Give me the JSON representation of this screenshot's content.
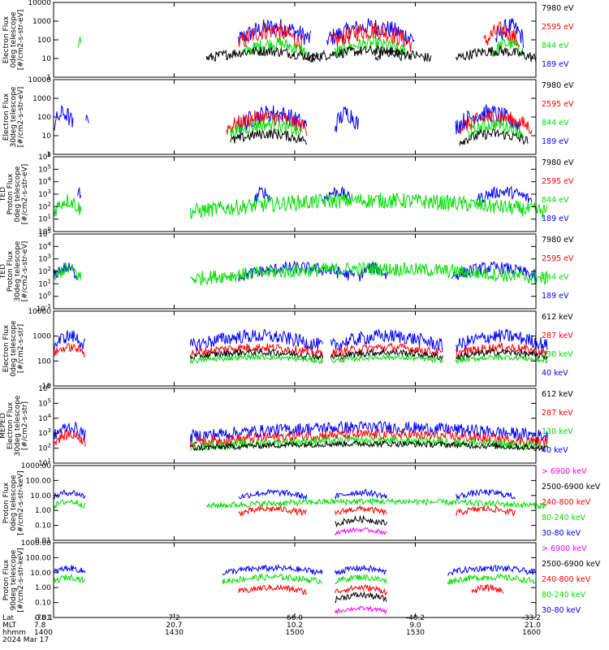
{
  "colors": {
    "blue": "#0000ff",
    "red": "#ff0000",
    "green": "#00dd00",
    "black": "#000000",
    "magenta": "#ff00ff",
    "frame": "#000000"
  },
  "chart_data": [
    {
      "type": "line",
      "ylabel": [
        "Electron Flux",
        "0deg telescope",
        "[#/cm2-s-str-eV]"
      ],
      "ylog": true,
      "ylim": [
        1,
        10000
      ],
      "yticks": [
        "1",
        "10",
        "100",
        "1000",
        "10000"
      ],
      "legend": [
        {
          "label": "7980 eV",
          "color": "black"
        },
        {
          "label": "2595 eV",
          "color": "red"
        },
        {
          "label": "844 eV",
          "color": "green"
        },
        {
          "label": "189 eV",
          "color": "blue"
        }
      ],
      "series": [
        {
          "color": "green",
          "level": 1.5,
          "spread": 0.4,
          "segments": [
            [
              1406,
              1407
            ]
          ]
        },
        {
          "color": "blue",
          "level": 2.0,
          "spread": 0.7,
          "segments": [
            [
              1446,
              1464
            ],
            [
              1508,
              1530
            ],
            [
              1550,
              1557
            ]
          ]
        },
        {
          "color": "red",
          "level": 1.8,
          "spread": 0.7,
          "segments": [
            [
              1446,
              1462
            ],
            [
              1509,
              1529
            ],
            [
              1547,
              1556
            ]
          ]
        },
        {
          "color": "green",
          "level": 1.3,
          "spread": 0.5,
          "segments": [
            [
              1447,
              1463
            ],
            [
              1510,
              1528
            ],
            [
              1549,
              1557
            ]
          ]
        },
        {
          "color": "black",
          "level": 1.0,
          "spread": 0.4,
          "segments": [
            [
              1438,
              1466
            ],
            [
              1480,
              1487
            ],
            [
              1503,
              1534
            ],
            [
              1540,
              1560
            ]
          ]
        }
      ]
    },
    {
      "type": "line",
      "ylabel": [
        "Electron Flux",
        "30deg telescope",
        "[#/cm2-s-str-eV]"
      ],
      "ylog": true,
      "ylim": [
        1,
        10000
      ],
      "yticks": [
        "1",
        "10",
        "100",
        "1000",
        "10000"
      ],
      "legend": [
        {
          "label": "7980 eV",
          "color": "black"
        },
        {
          "label": "2595 eV",
          "color": "red"
        },
        {
          "label": "844 eV",
          "color": "green"
        },
        {
          "label": "189 eV",
          "color": "blue"
        }
      ],
      "series": [
        {
          "color": "blue",
          "level": 1.5,
          "spread": 0.7,
          "segments": [
            [
              1400,
              1405
            ],
            [
              1408,
              1409
            ],
            [
              1446,
              1463
            ],
            [
              1510,
              1516
            ],
            [
              1540,
              1556
            ]
          ]
        },
        {
          "color": "red",
          "level": 1.4,
          "spread": 0.6,
          "segments": [
            [
              1443,
              1463
            ],
            [
              1541,
              1559
            ]
          ]
        },
        {
          "color": "green",
          "level": 1.1,
          "spread": 0.5,
          "segments": [
            [
              1444,
              1462
            ],
            [
              1543,
              1557
            ]
          ]
        },
        {
          "color": "black",
          "level": 0.7,
          "spread": 0.4,
          "segments": [
            [
              1444,
              1463
            ],
            [
              1541,
              1558
            ]
          ]
        }
      ]
    },
    {
      "type": "line",
      "ylabel": [
        "TED",
        "Proton Flux",
        "0deg telescope",
        "[#/cm2-s-str-eV]"
      ],
      "ylog": true,
      "ylim": [
        1,
        1000000
      ],
      "yticks": [
        "10^0",
        "10^1",
        "10^2",
        "10^3",
        "10^4",
        "10^5",
        "10^6"
      ],
      "legend": [
        {
          "label": "7980 eV",
          "color": "black"
        },
        {
          "label": "2595 eV",
          "color": "red"
        },
        {
          "label": "844 eV",
          "color": "green"
        },
        {
          "label": "189 eV",
          "color": "blue"
        }
      ],
      "series": [
        {
          "color": "blue",
          "level": 2.5,
          "spread": 0.7,
          "segments": [
            [
              1406,
              1407
            ],
            [
              1450,
              1454
            ],
            [
              1507,
              1514
            ],
            [
              1545,
              1559
            ]
          ]
        },
        {
          "color": "green",
          "level": 1.6,
          "spread": 0.9,
          "segments": [
            [
              1400,
              1407
            ],
            [
              1434,
              1563
            ]
          ]
        }
      ]
    },
    {
      "type": "line",
      "ylabel": [
        "TED",
        "Proton Flux",
        "30deg telescope",
        "[#/cm2-s-str-eV]"
      ],
      "ylog": true,
      "ylim": [
        0.1,
        100000
      ],
      "yticks": [
        "10^-1",
        "10^0",
        "10^1",
        "10^2",
        "10^3",
        "10^4",
        "10^5"
      ],
      "legend": [
        {
          "label": "7980 eV",
          "color": "black"
        },
        {
          "label": "2595 eV",
          "color": "red"
        },
        {
          "label": "844 eV",
          "color": "green"
        },
        {
          "label": "189 eV",
          "color": "blue"
        }
      ],
      "series": [
        {
          "color": "blue",
          "level": 1.6,
          "spread": 0.7,
          "segments": [
            [
              1400,
              1406
            ],
            [
              1446,
              1475
            ],
            [
              1516,
              1523
            ],
            [
              1539,
              1560
            ]
          ]
        },
        {
          "color": "green",
          "level": 1.4,
          "spread": 0.8,
          "segments": [
            [
              1400,
              1407
            ],
            [
              1434,
              1563
            ]
          ]
        }
      ]
    },
    {
      "type": "line",
      "ylabel": [
        "Electron Flux",
        "0deg telescope",
        "[#/cm2-s-str]"
      ],
      "ylog": true,
      "ylim": [
        10,
        10000
      ],
      "yticks": [
        "10",
        "100",
        "1000",
        "10000"
      ],
      "legend": [
        {
          "label": "612 keV",
          "color": "black"
        },
        {
          "label": "287 keV",
          "color": "red"
        },
        {
          "label": "130 keV",
          "color": "green"
        },
        {
          "label": "40 keV",
          "color": "blue"
        }
      ],
      "series": [
        {
          "color": "blue",
          "level": 2.6,
          "spread": 0.4,
          "segments": [
            [
              1400,
              1408
            ],
            [
              1434,
              1467
            ],
            [
              1509,
              1537
            ],
            [
              1540,
              1563
            ]
          ]
        },
        {
          "color": "red",
          "level": 2.3,
          "spread": 0.25,
          "segments": [
            [
              1400,
              1408
            ],
            [
              1434,
              1467
            ],
            [
              1509,
              1537
            ],
            [
              1540,
              1563
            ]
          ]
        },
        {
          "color": "black",
          "level": 2.15,
          "spread": 0.2,
          "segments": [
            [
              1434,
              1467
            ],
            [
              1509,
              1537
            ],
            [
              1540,
              1563
            ]
          ]
        },
        {
          "color": "green",
          "level": 2.0,
          "spread": 0.15,
          "segments": [
            [
              1434,
              1467
            ],
            [
              1509,
              1537
            ],
            [
              1540,
              1563
            ]
          ]
        }
      ]
    },
    {
      "type": "line",
      "ylabel": [
        "MEPED",
        "Electron Flux",
        "30deg telescope",
        "[#/cm2-s-str]"
      ],
      "ylog": true,
      "ylim": [
        10,
        1000000
      ],
      "yticks": [
        "10^1",
        "10^2",
        "10^3",
        "10^4",
        "10^5",
        "10^6"
      ],
      "legend": [
        {
          "label": "612 keV",
          "color": "black"
        },
        {
          "label": "287 keV",
          "color": "red"
        },
        {
          "label": "130 keV",
          "color": "green"
        },
        {
          "label": "40 keV",
          "color": "blue"
        }
      ],
      "series": [
        {
          "color": "blue",
          "level": 2.8,
          "spread": 0.6,
          "segments": [
            [
              1400,
              1408
            ],
            [
              1434,
              1563
            ]
          ]
        },
        {
          "color": "red",
          "level": 2.4,
          "spread": 0.5,
          "segments": [
            [
              1400,
              1408
            ],
            [
              1434,
              1563
            ]
          ]
        },
        {
          "color": "green",
          "level": 2.1,
          "spread": 0.4,
          "segments": [
            [
              1434,
              1563
            ]
          ]
        },
        {
          "color": "black",
          "level": 2.0,
          "spread": 0.3,
          "segments": [
            [
              1434,
              1563
            ]
          ]
        }
      ]
    },
    {
      "type": "line",
      "ylabel": [
        "Proton Flux",
        "0deg telescope",
        "[#/cm2-s-str-keV]"
      ],
      "ylog": true,
      "ylim": [
        0.01,
        1000
      ],
      "yticks": [
        "0.01",
        "0.10",
        "1.00",
        "10.00",
        "100.00",
        "1000.00"
      ],
      "legend": [
        {
          "label": "> 6900 keV",
          "color": "magenta"
        },
        {
          "label": "2500-6900 keV",
          "color": "black"
        },
        {
          "label": "240-800 keV",
          "color": "red"
        },
        {
          "label": "80-240 keV",
          "color": "green"
        },
        {
          "label": "30-80 keV",
          "color": "blue"
        }
      ],
      "series": [
        {
          "color": "blue",
          "level": 0.9,
          "spread": 0.3,
          "segments": [
            [
              1400,
              1408
            ],
            [
              1446,
              1463
            ],
            [
              1510,
              1523
            ],
            [
              1540,
              1555
            ]
          ]
        },
        {
          "color": "green",
          "level": 0.3,
          "spread": 0.3,
          "segments": [
            [
              1400,
              1408
            ],
            [
              1438,
              1563
            ]
          ]
        },
        {
          "color": "red",
          "level": -0.2,
          "spread": 0.3,
          "segments": [
            [
              1446,
              1463
            ],
            [
              1510,
              1523
            ],
            [
              1540,
              1555
            ]
          ]
        },
        {
          "color": "black",
          "level": -0.9,
          "spread": 0.3,
          "segments": [
            [
              1510,
              1523
            ]
          ]
        },
        {
          "color": "magenta",
          "level": -1.5,
          "spread": 0.2,
          "segments": [
            [
              1510,
              1523
            ]
          ]
        }
      ]
    },
    {
      "type": "line",
      "ylabel": [
        "Proton Flux",
        "90deg telescope",
        "[#/cm2-s-str-keV]"
      ],
      "ylog": true,
      "ylim": [
        0.01,
        1000
      ],
      "yticks": [
        "0.01",
        "0.10",
        "1.00",
        "10.00",
        "100.00",
        "1000.00"
      ],
      "legend": [
        {
          "label": "> 6900 keV",
          "color": "magenta"
        },
        {
          "label": "2500-6900 keV",
          "color": "black"
        },
        {
          "label": "240-800 keV",
          "color": "red"
        },
        {
          "label": "80-240 keV",
          "color": "green"
        },
        {
          "label": "30-80 keV",
          "color": "blue"
        }
      ],
      "series": [
        {
          "color": "blue",
          "level": 1.0,
          "spread": 0.3,
          "segments": [
            [
              1400,
              1408
            ],
            [
              1442,
              1467
            ],
            [
              1510,
              1523
            ],
            [
              1538,
              1560
            ]
          ]
        },
        {
          "color": "green",
          "level": 0.4,
          "spread": 0.3,
          "segments": [
            [
              1400,
              1408
            ],
            [
              1442,
              1467
            ],
            [
              1510,
              1523
            ],
            [
              1538,
              1560
            ]
          ]
        },
        {
          "color": "red",
          "level": -0.3,
          "spread": 0.3,
          "segments": [
            [
              1446,
              1463
            ],
            [
              1510,
              1523
            ],
            [
              1544,
              1552
            ]
          ]
        },
        {
          "color": "black",
          "level": -0.8,
          "spread": 0.3,
          "segments": [
            [
              1510,
              1523
            ]
          ]
        },
        {
          "color": "magenta",
          "level": -1.6,
          "spread": 0.2,
          "segments": [
            [
              1510,
              1523
            ]
          ]
        }
      ]
    }
  ],
  "x_axis": {
    "range": [
      1400,
      1600
    ],
    "row_labels": [
      "Lat",
      "MLT",
      "hhmm",
      "2024 Mar 17"
    ],
    "ticks": [
      {
        "hhmm": "1400",
        "lat": "-78.1",
        "mlt": "7.8"
      },
      {
        "hhmm": "1430",
        "lat": "7.2",
        "mlt": "20.7"
      },
      {
        "hhmm": "1500",
        "lat": "66.0",
        "mlt": "10.2"
      },
      {
        "hhmm": "1530",
        "lat": "-40.2",
        "mlt": "9.0"
      },
      {
        "hhmm": "1600",
        "lat": "-33.2",
        "mlt": "21.0"
      }
    ]
  }
}
